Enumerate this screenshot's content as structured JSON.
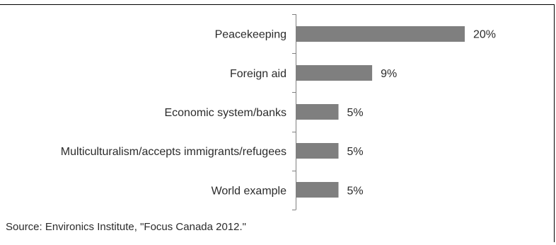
{
  "chart_data": {
    "type": "bar",
    "orientation": "horizontal",
    "categories": [
      "Peacekeeping",
      "Foreign aid",
      "Economic system/banks",
      "Multiculturalism/accepts immigrants/refugees",
      "World example"
    ],
    "values": [
      20,
      9,
      5,
      5,
      5
    ],
    "data_labels": [
      "20%",
      "9%",
      "5%",
      "5%",
      "5%"
    ],
    "value_unit": "%",
    "xlim": [
      0,
      20
    ],
    "grid": false,
    "legend": "none",
    "bar_color": "#7f7f7f",
    "axis_color": "#808080"
  },
  "source_note": "Source: Environics Institute, \"Focus Canada 2012.\""
}
